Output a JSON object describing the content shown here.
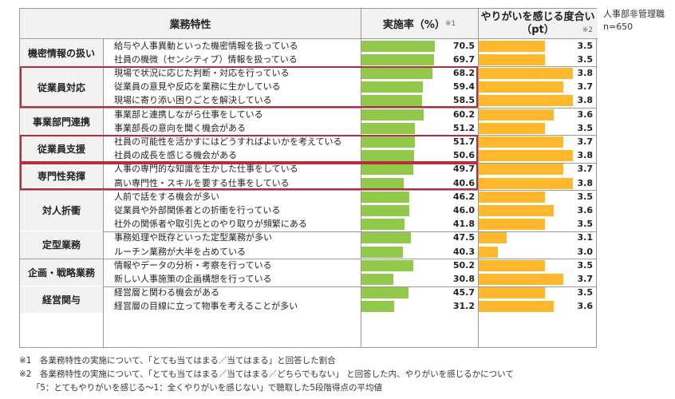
{
  "respondent_note": [
    "人事部非管理職",
    "n=650"
  ],
  "headers": {
    "category": "業務特性",
    "rate": "実施率（%）",
    "rate_mark": "※1",
    "score_line1": "やりがいを感じる度合い",
    "score_line2": "（pt）",
    "score_mark": "※2"
  },
  "chart_data": {
    "type": "bar",
    "rate_axis_max": 100,
    "score_axis": {
      "min": 2.8,
      "max": 3.8
    },
    "colors": {
      "rate_bar": "#92c94a",
      "score_bar": "#ffb72b",
      "highlight": "#b52f3a"
    },
    "groups": [
      {
        "name": "機密情報の扱い",
        "highlight": false,
        "items": [
          {
            "text": "給与や人事異動といった機密情報を扱っている",
            "rate": "70.5",
            "score": "3.5"
          },
          {
            "text": "社員の機微（センシティブ）情報を扱っている",
            "rate": "69.7",
            "score": "3.5"
          }
        ]
      },
      {
        "name": "従業員対応",
        "highlight": true,
        "items": [
          {
            "text": "現場で状況に応じた判断・対応を行っている",
            "rate": "68.2",
            "score": "3.8"
          },
          {
            "text": "従業員の意見や反応を業務に生かしている",
            "rate": "59.4",
            "score": "3.7"
          },
          {
            "text": "現場に寄り添い困りごとを解決している",
            "rate": "58.5",
            "score": "3.8"
          }
        ]
      },
      {
        "name": "事業部門連携",
        "highlight": false,
        "items": [
          {
            "text": "事業部と連携しながら仕事をしている",
            "rate": "60.2",
            "score": "3.6"
          },
          {
            "text": "事業部長の意向を聞く機会がある",
            "rate": "51.2",
            "score": "3.5"
          }
        ]
      },
      {
        "name": "従業員支援",
        "highlight": true,
        "items": [
          {
            "text": "社員の可能性を活かすにはどうすればよいかを考えている",
            "rate": "51.7",
            "score": "3.7"
          },
          {
            "text": "社員の成長を感じる機会がある",
            "rate": "50.6",
            "score": "3.8"
          }
        ]
      },
      {
        "name": "専門性発揮",
        "highlight": true,
        "items": [
          {
            "text": "人事の専門的な知識を生かした仕事をしている",
            "rate": "49.7",
            "score": "3.7"
          },
          {
            "text": "高い専門性・スキルを要する仕事をしている",
            "rate": "40.6",
            "score": "3.8"
          }
        ]
      },
      {
        "name": "対人折衝",
        "highlight": false,
        "items": [
          {
            "text": "人前で話をする機会が多い",
            "rate": "46.2",
            "score": "3.5"
          },
          {
            "text": "従業員や外部関係者との折衝を行っている",
            "rate": "46.0",
            "score": "3.6"
          },
          {
            "text": "社外の関係者や取引先とのやり取りが頻繁にある",
            "rate": "41.8",
            "score": "3.5"
          }
        ]
      },
      {
        "name": "定型業務",
        "highlight": false,
        "items": [
          {
            "text": "事務処理や既存といった定型業務が多い",
            "rate": "47.5",
            "score": "3.1"
          },
          {
            "text": "ルーチン業務が大半を占めている",
            "rate": "40.3",
            "score": "3.0"
          }
        ]
      },
      {
        "name": "企画・戦略業務",
        "highlight": false,
        "items": [
          {
            "text": "情報やデータの分析・考察を行っている",
            "rate": "50.2",
            "score": "3.5"
          },
          {
            "text": "新しい人事施策の企画構想を行っている",
            "rate": "30.8",
            "score": "3.7"
          }
        ]
      },
      {
        "name": "経営関与",
        "highlight": false,
        "items": [
          {
            "text": "経営層と関わる機会がある",
            "rate": "45.7",
            "score": "3.5"
          },
          {
            "text": "経営層の目線に立って物事を考えることが多い",
            "rate": "31.2",
            "score": "3.6"
          }
        ]
      }
    ]
  },
  "footnotes": [
    "※1　各業務特性の実施について、「とても当てはまる／当てはまる」と回答した割合",
    "※2　各業務特性の実施について、「とても当てはまる／当てはまる／どちらでもない」 と回答した内、やりがいを感じるかについて",
    "　　「5：とてもやりがいを感じる～1：全くやりがいを感じない」で聴取した5段階得点の平均値"
  ]
}
